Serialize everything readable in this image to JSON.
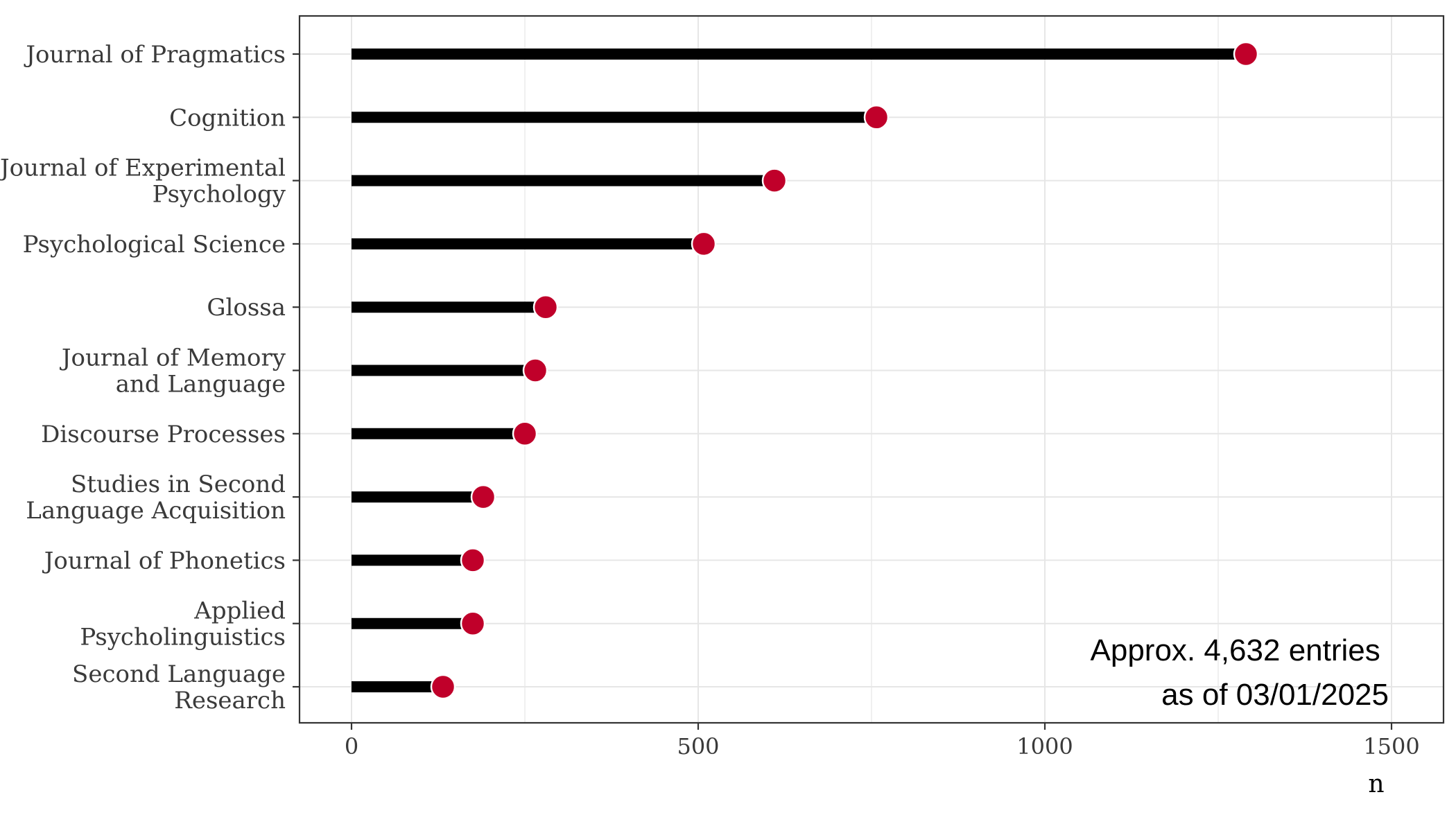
{
  "chart_data": {
    "type": "lollipop",
    "categories": [
      [
        "Journal of Pragmatics"
      ],
      [
        "Cognition"
      ],
      [
        "Journal of Experimental",
        "Psychology"
      ],
      [
        "Psychological Science"
      ],
      [
        "Glossa"
      ],
      [
        "Journal of Memory",
        "and Language"
      ],
      [
        "Discourse Processes"
      ],
      [
        "Studies in Second",
        "Language Acquisition"
      ],
      [
        "Journal of Phonetics"
      ],
      [
        "Applied",
        "Psycholinguistics"
      ],
      [
        "Second Language",
        "Research"
      ]
    ],
    "values": [
      1290,
      757,
      610,
      508,
      280,
      265,
      250,
      190,
      175,
      175,
      132
    ],
    "xlabel": "n",
    "xlim": [
      -75,
      1575
    ],
    "xticks": [
      0,
      500,
      1000,
      1500
    ],
    "grid": true,
    "colors": {
      "stem": "#000000",
      "point": "#c0002a",
      "point_outline": "#ffffff",
      "grid": "#e6e6e6",
      "panel_border": "#333333"
    },
    "annotation": [
      "Approx. 4,632 entries",
      "as of 03/01/2025"
    ]
  }
}
